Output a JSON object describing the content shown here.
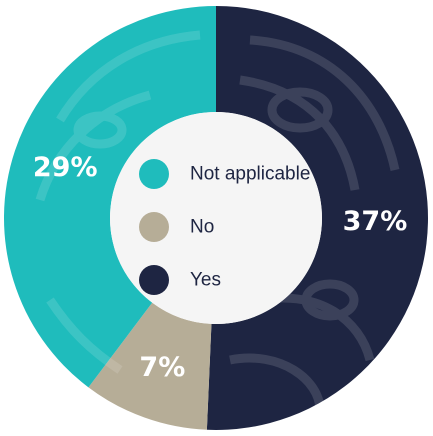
{
  "chart_data": {
    "type": "pie",
    "donut": true,
    "title": "",
    "categories": [
      "Yes",
      "No",
      "Not applicable"
    ],
    "values": [
      37,
      7,
      29
    ],
    "value_labels": [
      "37%",
      "7%",
      "29%"
    ],
    "legend": {
      "placement": "center",
      "order": [
        "Not applicable",
        "No",
        "Yes"
      ]
    },
    "colors": {
      "Yes": "#1e2542",
      "No": "#b6ad97",
      "Not applicable": "#1fbcbc"
    }
  }
}
